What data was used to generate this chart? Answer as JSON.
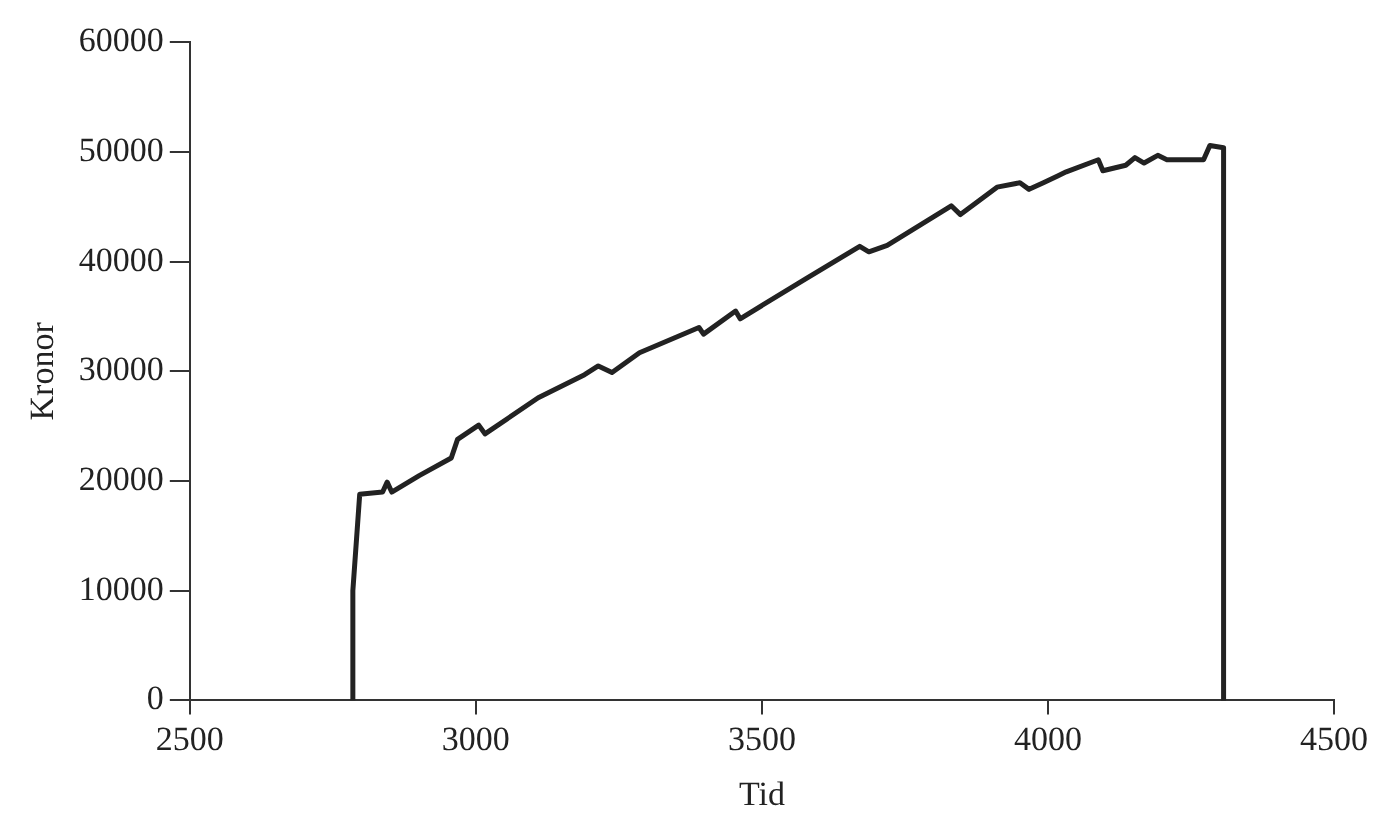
{
  "chart_data": {
    "type": "line",
    "xlabel": "Tid",
    "ylabel": "Kronor",
    "x": [
      2785,
      2785,
      2797,
      2837,
      2845,
      2853,
      2901,
      2957,
      2968,
      3005,
      3016,
      3109,
      3190,
      3214,
      3238,
      3286,
      3390,
      3398,
      3454,
      3462,
      3575,
      3671,
      3687,
      3719,
      3831,
      3847,
      3911,
      3951,
      3967,
      3992,
      4016,
      4032,
      4088,
      4096,
      4136,
      4152,
      4168,
      4192,
      4208,
      4272,
      4283,
      4307,
      4307
    ],
    "series": [
      {
        "color": "#222222",
        "values": [
          0,
          10000,
          18800,
          19000,
          19900,
          19000,
          20500,
          22100,
          23800,
          25100,
          24300,
          27600,
          29700,
          30500,
          29900,
          31700,
          34000,
          33400,
          35500,
          34800,
          38400,
          41400,
          40900,
          41500,
          45100,
          44300,
          46800,
          47200,
          46600,
          47200,
          47800,
          48200,
          49300,
          48300,
          48800,
          49500,
          49000,
          49700,
          49300,
          49300,
          50600,
          50400,
          0
        ]
      }
    ],
    "xlim": [
      2500,
      4500
    ],
    "xticks": [
      2500,
      3000,
      3500,
      4000,
      4500
    ],
    "ylim": [
      0,
      60000
    ],
    "yticks": [
      0,
      10000,
      20000,
      30000,
      40000,
      50000,
      60000
    ],
    "grid": false,
    "legend": false,
    "marker": "none",
    "line_style": "solid"
  }
}
